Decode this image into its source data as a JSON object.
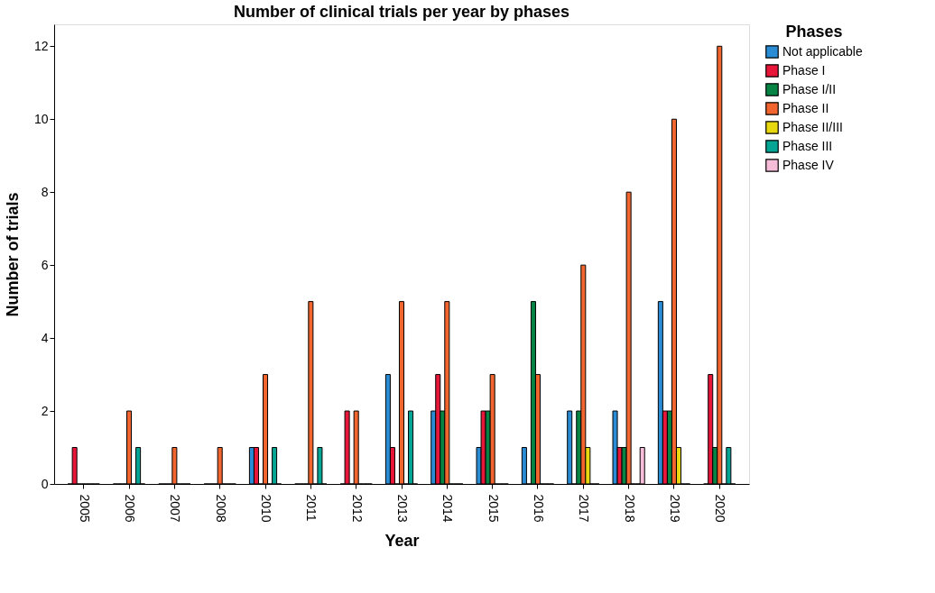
{
  "chart_data": {
    "type": "bar",
    "title": "Number of clinical trials per year by phases",
    "xlabel": "Year",
    "ylabel": "Number of trials",
    "legend_title": "Phases",
    "categories": [
      "2005",
      "2006",
      "2007",
      "2008",
      "2010",
      "2011",
      "2012",
      "2013",
      "2014",
      "2015",
      "2016",
      "2017",
      "2018",
      "2019",
      "2020"
    ],
    "series": [
      {
        "name": "Not applicable",
        "color": "#2b8cd6",
        "values": [
          0,
          0,
          0,
          0,
          1,
          0,
          0,
          3,
          2,
          1,
          1,
          2,
          2,
          5,
          0
        ]
      },
      {
        "name": "Phase I",
        "color": "#e8173a",
        "values": [
          1,
          0,
          0,
          0,
          1,
          0,
          2,
          1,
          3,
          2,
          0,
          0,
          1,
          2,
          3
        ]
      },
      {
        "name": "Phase I/II",
        "color": "#078444",
        "values": [
          0,
          0,
          0,
          0,
          0,
          0,
          0,
          0,
          2,
          2,
          5,
          2,
          1,
          2,
          1
        ]
      },
      {
        "name": "Phase II",
        "color": "#f2652e",
        "values": [
          0,
          2,
          1,
          1,
          3,
          5,
          2,
          5,
          5,
          3,
          3,
          6,
          8,
          10,
          12
        ]
      },
      {
        "name": "Phase II/III",
        "color": "#e8d80f",
        "values": [
          0,
          0,
          0,
          0,
          0,
          0,
          0,
          0,
          0,
          0,
          0,
          1,
          0,
          1,
          0
        ]
      },
      {
        "name": "Phase III",
        "color": "#04a595",
        "values": [
          0,
          1,
          0,
          0,
          1,
          1,
          0,
          2,
          0,
          0,
          0,
          0,
          0,
          0,
          1
        ]
      },
      {
        "name": "Phase IV",
        "color": "#f7bcd8",
        "values": [
          0,
          0,
          0,
          0,
          0,
          0,
          0,
          0,
          0,
          0,
          0,
          0,
          1,
          0,
          0
        ]
      }
    ],
    "ylim": [
      0,
      12.6
    ],
    "yticks": [
      0,
      2,
      4,
      6,
      8,
      10,
      12
    ],
    "grid": false,
    "legend": "top right"
  }
}
